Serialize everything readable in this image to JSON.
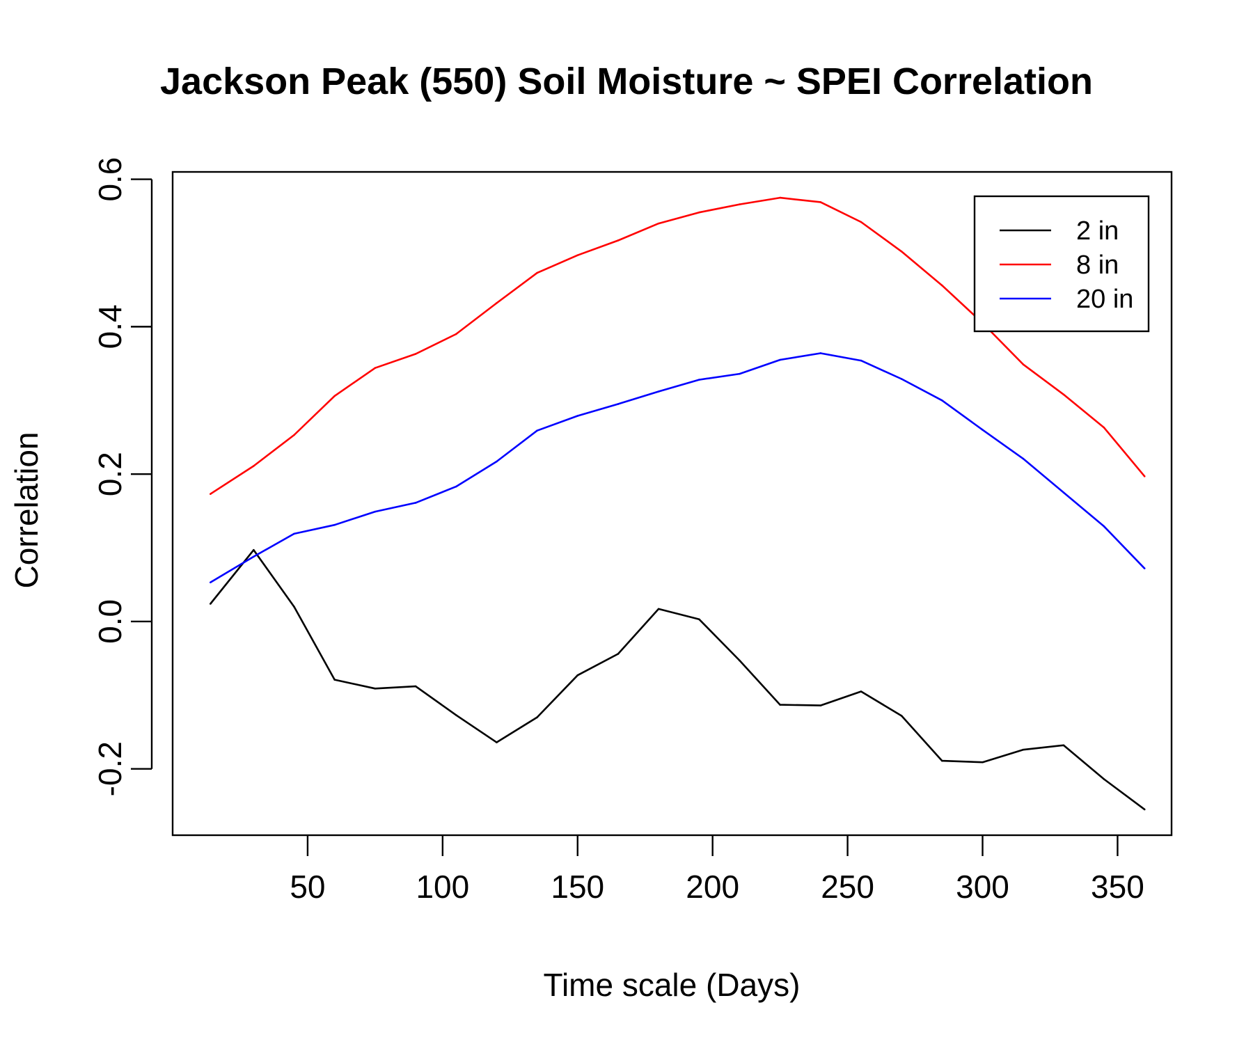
{
  "chart_data": {
    "type": "line",
    "title": "Jackson Peak (550) Soil Moisture ~ SPEI Correlation",
    "xlabel": "Time scale (Days)",
    "ylabel": "Correlation",
    "x": [
      14,
      30,
      45,
      60,
      75,
      90,
      105,
      120,
      135,
      150,
      165,
      180,
      195,
      210,
      225,
      240,
      255,
      270,
      285,
      300,
      315,
      330,
      345,
      360
    ],
    "xlim": [
      0,
      370
    ],
    "ylim": [
      -0.29,
      0.61
    ],
    "xticks": [
      50,
      100,
      150,
      200,
      250,
      300,
      350
    ],
    "xtick_labels": [
      "50",
      "100",
      "150",
      "200",
      "250",
      "300",
      "350"
    ],
    "yticks": [
      -0.2,
      0.0,
      0.2,
      0.4,
      0.6
    ],
    "ytick_labels": [
      "-0.2",
      "0.0",
      "0.2",
      "0.4",
      "0.6"
    ],
    "grid": false,
    "legend_position": "top-right",
    "series": [
      {
        "name": "2 in",
        "color": "#000000",
        "values": [
          0.024,
          0.097,
          0.02,
          -0.079,
          -0.091,
          -0.088,
          -0.127,
          -0.164,
          -0.13,
          -0.073,
          -0.044,
          0.017,
          0.003,
          -0.053,
          -0.113,
          -0.114,
          -0.095,
          -0.128,
          -0.189,
          -0.191,
          -0.174,
          -0.168,
          -0.214,
          -0.255
        ]
      },
      {
        "name": "8 in",
        "color": "#ff0000",
        "values": [
          0.173,
          0.211,
          0.253,
          0.306,
          0.344,
          0.363,
          0.39,
          0.432,
          0.473,
          0.497,
          0.517,
          0.54,
          0.555,
          0.566,
          0.575,
          0.569,
          0.542,
          0.502,
          0.456,
          0.405,
          0.349,
          0.308,
          0.263,
          0.197
        ]
      },
      {
        "name": "20 in",
        "color": "#0000ff",
        "values": [
          0.053,
          0.088,
          0.119,
          0.131,
          0.149,
          0.161,
          0.183,
          0.217,
          0.259,
          0.279,
          0.295,
          0.312,
          0.328,
          0.336,
          0.355,
          0.364,
          0.354,
          0.329,
          0.3,
          0.26,
          0.221,
          0.175,
          0.129,
          0.072
        ]
      }
    ]
  }
}
